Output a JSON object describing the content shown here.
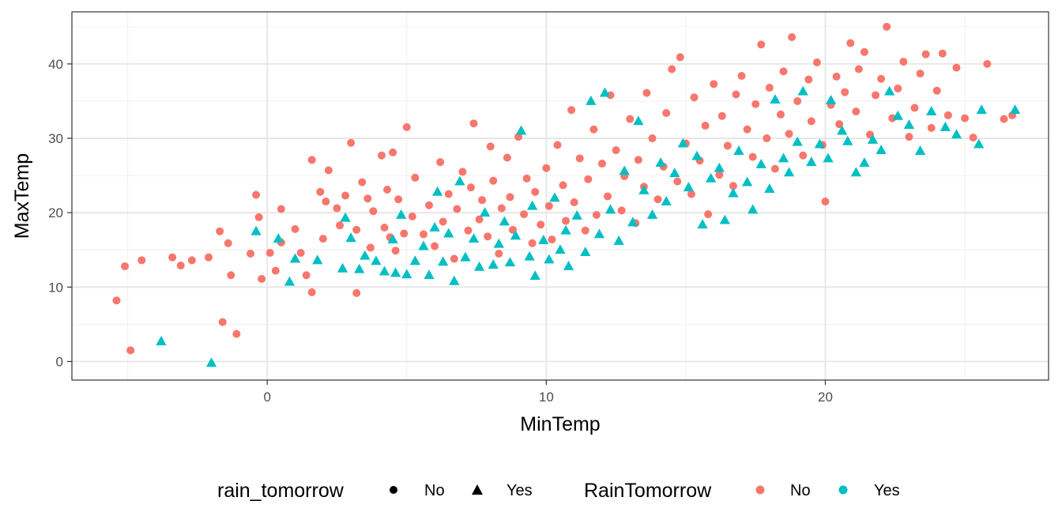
{
  "chart_data": {
    "type": "scatter",
    "title": "",
    "xlabel": "MinTemp",
    "ylabel": "MaxTemp",
    "xlim": [
      -7,
      28
    ],
    "ylim": [
      -2.5,
      47
    ],
    "x_ticks": [
      0,
      10,
      20
    ],
    "y_ticks": [
      0,
      10,
      20,
      30,
      40
    ],
    "grid": true,
    "legend_position": "bottom",
    "legends": {
      "shape": {
        "title": "rain_tomorrow",
        "entries": [
          {
            "label": "No",
            "shape": "circle"
          },
          {
            "label": "Yes",
            "shape": "triangle"
          }
        ]
      },
      "color": {
        "title": "RainTomorrow",
        "entries": [
          {
            "label": "No",
            "color": "#F8766D"
          },
          {
            "label": "Yes",
            "color": "#00BFC4"
          }
        ]
      }
    },
    "series": [
      {
        "name": "No",
        "shape": "circle",
        "color": "#F8766D",
        "points": [
          [
            -5.4,
            8.2
          ],
          [
            -5.1,
            12.8
          ],
          [
            -4.9,
            1.5
          ],
          [
            -4.5,
            13.6
          ],
          [
            -3.4,
            14.0
          ],
          [
            -3.1,
            12.9
          ],
          [
            -2.7,
            13.6
          ],
          [
            -2.1,
            14.0
          ],
          [
            -1.7,
            17.5
          ],
          [
            -1.6,
            5.3
          ],
          [
            -1.4,
            15.9
          ],
          [
            -1.3,
            11.6
          ],
          [
            -1.1,
            3.7
          ],
          [
            -0.6,
            14.5
          ],
          [
            -0.4,
            22.4
          ],
          [
            -0.3,
            19.4
          ],
          [
            -0.2,
            11.1
          ],
          [
            0.1,
            14.6
          ],
          [
            0.3,
            12.2
          ],
          [
            0.5,
            16.0
          ],
          [
            0.5,
            20.5
          ],
          [
            1.0,
            17.8
          ],
          [
            1.2,
            14.6
          ],
          [
            1.4,
            11.6
          ],
          [
            1.6,
            9.3
          ],
          [
            1.6,
            27.1
          ],
          [
            1.9,
            22.8
          ],
          [
            2.0,
            16.5
          ],
          [
            2.1,
            21.5
          ],
          [
            2.2,
            25.7
          ],
          [
            2.5,
            20.6
          ],
          [
            2.6,
            18.3
          ],
          [
            2.8,
            22.3
          ],
          [
            3.0,
            29.4
          ],
          [
            3.2,
            9.2
          ],
          [
            3.2,
            17.7
          ],
          [
            3.4,
            24.1
          ],
          [
            3.6,
            21.9
          ],
          [
            3.7,
            15.3
          ],
          [
            3.8,
            20.2
          ],
          [
            4.1,
            27.7
          ],
          [
            4.2,
            18.0
          ],
          [
            4.3,
            23.1
          ],
          [
            4.4,
            16.7
          ],
          [
            4.5,
            28.1
          ],
          [
            4.6,
            14.9
          ],
          [
            4.7,
            21.8
          ],
          [
            4.9,
            17.2
          ],
          [
            5.0,
            31.5
          ],
          [
            5.2,
            19.5
          ],
          [
            5.3,
            24.7
          ],
          [
            5.6,
            17.1
          ],
          [
            5.8,
            21.0
          ],
          [
            6.0,
            15.5
          ],
          [
            6.2,
            26.8
          ],
          [
            6.3,
            18.8
          ],
          [
            6.5,
            22.5
          ],
          [
            6.7,
            13.8
          ],
          [
            6.8,
            20.5
          ],
          [
            7.0,
            25.5
          ],
          [
            7.2,
            17.6
          ],
          [
            7.3,
            23.4
          ],
          [
            7.4,
            32.0
          ],
          [
            7.6,
            19.1
          ],
          [
            7.7,
            21.7
          ],
          [
            7.9,
            16.8
          ],
          [
            8.0,
            28.9
          ],
          [
            8.1,
            24.3
          ],
          [
            8.3,
            14.5
          ],
          [
            8.4,
            20.6
          ],
          [
            8.6,
            27.4
          ],
          [
            8.7,
            22.1
          ],
          [
            8.8,
            17.7
          ],
          [
            9.0,
            30.2
          ],
          [
            9.2,
            19.8
          ],
          [
            9.3,
            24.6
          ],
          [
            9.5,
            15.9
          ],
          [
            9.6,
            22.8
          ],
          [
            9.8,
            18.4
          ],
          [
            10.0,
            26.0
          ],
          [
            10.1,
            20.9
          ],
          [
            10.2,
            16.4
          ],
          [
            10.4,
            29.1
          ],
          [
            10.6,
            23.7
          ],
          [
            10.7,
            18.9
          ],
          [
            10.9,
            33.8
          ],
          [
            11.0,
            21.4
          ],
          [
            11.2,
            27.3
          ],
          [
            11.4,
            17.6
          ],
          [
            11.5,
            24.5
          ],
          [
            11.7,
            31.2
          ],
          [
            11.8,
            19.7
          ],
          [
            12.0,
            26.6
          ],
          [
            12.2,
            22.2
          ],
          [
            12.3,
            35.8
          ],
          [
            12.5,
            28.4
          ],
          [
            12.7,
            20.3
          ],
          [
            12.8,
            24.9
          ],
          [
            13.0,
            32.6
          ],
          [
            13.2,
            18.6
          ],
          [
            13.3,
            27.1
          ],
          [
            13.5,
            23.5
          ],
          [
            13.6,
            36.1
          ],
          [
            13.8,
            30.0
          ],
          [
            14.0,
            21.8
          ],
          [
            14.2,
            26.2
          ],
          [
            14.3,
            33.4
          ],
          [
            14.5,
            39.3
          ],
          [
            14.7,
            24.2
          ],
          [
            14.8,
            40.9
          ],
          [
            15.0,
            29.3
          ],
          [
            15.2,
            22.5
          ],
          [
            15.3,
            35.5
          ],
          [
            15.5,
            27.0
          ],
          [
            15.7,
            31.7
          ],
          [
            15.8,
            19.8
          ],
          [
            16.0,
            37.3
          ],
          [
            16.2,
            25.1
          ],
          [
            16.3,
            33.0
          ],
          [
            16.5,
            29.0
          ],
          [
            16.7,
            23.6
          ],
          [
            16.8,
            35.9
          ],
          [
            17.0,
            38.4
          ],
          [
            17.2,
            31.2
          ],
          [
            17.4,
            27.5
          ],
          [
            17.5,
            34.6
          ],
          [
            17.7,
            42.6
          ],
          [
            17.9,
            30.0
          ],
          [
            18.0,
            36.8
          ],
          [
            18.2,
            25.9
          ],
          [
            18.4,
            33.2
          ],
          [
            18.5,
            39.0
          ],
          [
            18.7,
            30.6
          ],
          [
            18.8,
            43.6
          ],
          [
            19.0,
            35.0
          ],
          [
            19.2,
            27.7
          ],
          [
            19.4,
            37.9
          ],
          [
            19.5,
            32.3
          ],
          [
            19.7,
            40.2
          ],
          [
            19.9,
            29.1
          ],
          [
            20.0,
            21.5
          ],
          [
            20.2,
            34.5
          ],
          [
            20.4,
            38.3
          ],
          [
            20.5,
            31.9
          ],
          [
            20.7,
            36.2
          ],
          [
            20.9,
            42.8
          ],
          [
            21.1,
            33.6
          ],
          [
            21.2,
            39.3
          ],
          [
            21.4,
            41.6
          ],
          [
            21.6,
            30.5
          ],
          [
            21.8,
            35.8
          ],
          [
            22.0,
            38.0
          ],
          [
            22.2,
            45.0
          ],
          [
            22.4,
            32.7
          ],
          [
            22.6,
            36.7
          ],
          [
            22.8,
            40.3
          ],
          [
            23.0,
            30.2
          ],
          [
            23.2,
            34.1
          ],
          [
            23.4,
            38.7
          ],
          [
            23.6,
            41.3
          ],
          [
            23.8,
            31.4
          ],
          [
            24.0,
            36.4
          ],
          [
            24.2,
            41.4
          ],
          [
            24.4,
            33.1
          ],
          [
            24.7,
            39.5
          ],
          [
            25.0,
            32.7
          ],
          [
            25.3,
            30.1
          ],
          [
            25.8,
            40.0
          ],
          [
            26.4,
            32.6
          ],
          [
            26.7,
            33.1
          ]
        ]
      },
      {
        "name": "Yes",
        "shape": "triangle",
        "color": "#00BFC4",
        "points": [
          [
            -3.8,
            2.7
          ],
          [
            -2.0,
            -0.2
          ],
          [
            -0.4,
            17.5
          ],
          [
            0.4,
            16.5
          ],
          [
            0.8,
            10.7
          ],
          [
            1.0,
            13.8
          ],
          [
            1.8,
            13.6
          ],
          [
            2.7,
            12.5
          ],
          [
            2.8,
            19.3
          ],
          [
            3.0,
            16.6
          ],
          [
            3.3,
            12.4
          ],
          [
            3.5,
            14.2
          ],
          [
            3.9,
            13.5
          ],
          [
            4.2,
            12.1
          ],
          [
            4.5,
            16.4
          ],
          [
            4.6,
            11.9
          ],
          [
            4.8,
            19.7
          ],
          [
            5.0,
            11.7
          ],
          [
            5.3,
            13.5
          ],
          [
            5.6,
            15.5
          ],
          [
            5.8,
            11.6
          ],
          [
            6.0,
            18.0
          ],
          [
            6.1,
            22.8
          ],
          [
            6.3,
            13.4
          ],
          [
            6.5,
            17.2
          ],
          [
            6.7,
            10.8
          ],
          [
            6.9,
            24.2
          ],
          [
            7.1,
            14.0
          ],
          [
            7.4,
            16.5
          ],
          [
            7.6,
            12.7
          ],
          [
            7.8,
            20.0
          ],
          [
            8.1,
            13.0
          ],
          [
            8.3,
            15.8
          ],
          [
            8.5,
            18.8
          ],
          [
            8.7,
            13.3
          ],
          [
            8.9,
            16.9
          ],
          [
            9.1,
            31.0
          ],
          [
            9.4,
            14.1
          ],
          [
            9.5,
            20.9
          ],
          [
            9.6,
            11.5
          ],
          [
            9.9,
            16.3
          ],
          [
            10.1,
            13.7
          ],
          [
            10.3,
            22.0
          ],
          [
            10.5,
            15.0
          ],
          [
            10.7,
            17.6
          ],
          [
            10.8,
            12.8
          ],
          [
            11.1,
            19.6
          ],
          [
            11.4,
            14.7
          ],
          [
            11.6,
            35.0
          ],
          [
            11.9,
            17.1
          ],
          [
            12.1,
            36.1
          ],
          [
            12.3,
            20.4
          ],
          [
            12.6,
            16.2
          ],
          [
            12.8,
            25.6
          ],
          [
            13.1,
            18.7
          ],
          [
            13.3,
            32.3
          ],
          [
            13.5,
            23.0
          ],
          [
            13.8,
            19.7
          ],
          [
            14.1,
            26.7
          ],
          [
            14.3,
            21.5
          ],
          [
            14.6,
            25.3
          ],
          [
            14.9,
            29.3
          ],
          [
            15.1,
            23.4
          ],
          [
            15.4,
            27.6
          ],
          [
            15.6,
            18.4
          ],
          [
            15.9,
            24.6
          ],
          [
            16.2,
            26.0
          ],
          [
            16.4,
            19.0
          ],
          [
            16.7,
            22.6
          ],
          [
            16.9,
            28.3
          ],
          [
            17.2,
            24.1
          ],
          [
            17.4,
            20.4
          ],
          [
            17.7,
            26.5
          ],
          [
            18.0,
            23.2
          ],
          [
            18.2,
            35.2
          ],
          [
            18.5,
            27.3
          ],
          [
            18.7,
            25.4
          ],
          [
            19.0,
            29.5
          ],
          [
            19.2,
            36.3
          ],
          [
            19.5,
            26.8
          ],
          [
            19.8,
            29.2
          ],
          [
            20.1,
            27.3
          ],
          [
            20.2,
            35.1
          ],
          [
            20.6,
            31.0
          ],
          [
            20.8,
            29.6
          ],
          [
            21.1,
            25.4
          ],
          [
            21.4,
            26.7
          ],
          [
            21.7,
            29.8
          ],
          [
            22.0,
            28.4
          ],
          [
            22.3,
            36.3
          ],
          [
            22.6,
            33.0
          ],
          [
            23.0,
            31.8
          ],
          [
            23.4,
            28.3
          ],
          [
            23.8,
            33.6
          ],
          [
            24.3,
            31.5
          ],
          [
            24.7,
            30.5
          ],
          [
            25.5,
            29.2
          ],
          [
            25.6,
            33.8
          ],
          [
            26.8,
            33.8
          ]
        ]
      }
    ]
  }
}
